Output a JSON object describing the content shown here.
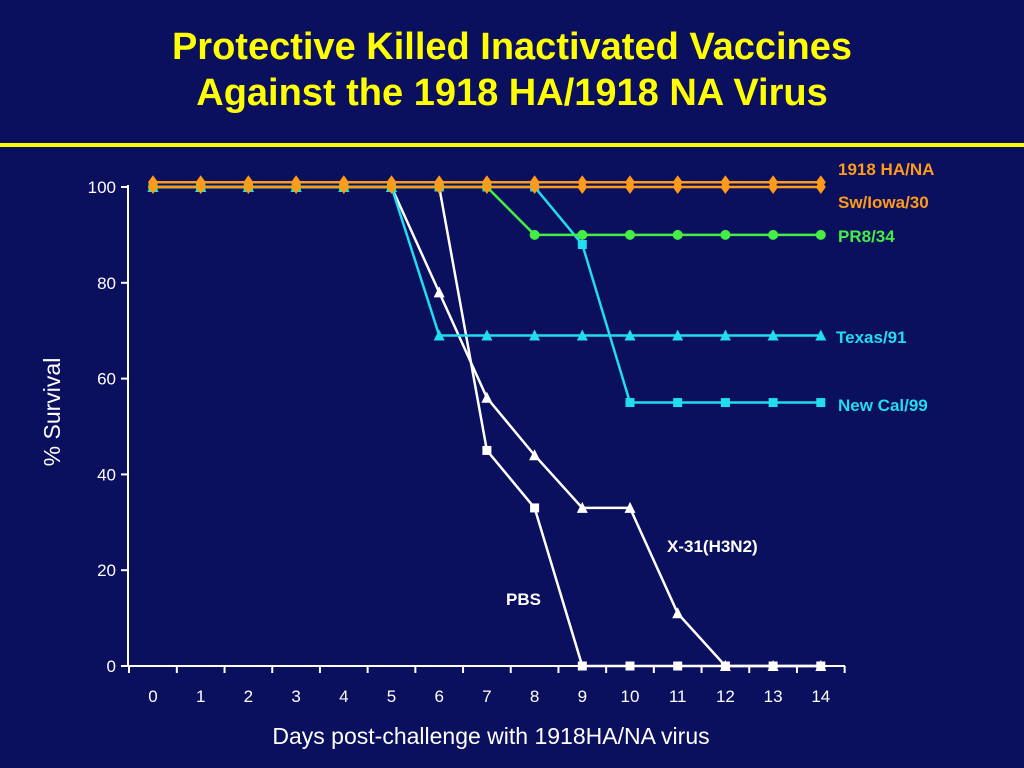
{
  "slide": {
    "title_line1": "Protective Killed Inactivated Vaccines",
    "title_line2": "Against the 1918 HA/1918 NA Virus"
  },
  "colors": {
    "background": "#0a0f5e",
    "title": "#ffff00",
    "axes": "#ffffff"
  },
  "chart_data": {
    "type": "line",
    "title": "",
    "xlabel": "Days post-challenge with 1918HA/NA virus",
    "ylabel": "% Survival",
    "xlim": [
      0,
      14
    ],
    "ylim": [
      0,
      100
    ],
    "x_ticks": [
      "0",
      "1",
      "2",
      "3",
      "4",
      "5",
      "6",
      "7",
      "8",
      "9",
      "10",
      "11",
      "12",
      "13",
      "14"
    ],
    "y_ticks": [
      "0",
      "20",
      "40",
      "60",
      "80",
      "100"
    ],
    "grid": false,
    "legend": "direct labels",
    "x": [
      0,
      1,
      2,
      3,
      4,
      5,
      6,
      7,
      8,
      9,
      10,
      11,
      12,
      13,
      14
    ],
    "series": [
      {
        "name": "1918 HA/NA",
        "color": "#ff9a1a",
        "marker": "diamond",
        "values": [
          101,
          101,
          101,
          101,
          101,
          101,
          101,
          101,
          101,
          101,
          101,
          101,
          101,
          101,
          101
        ]
      },
      {
        "name": "Sw/Iowa/30",
        "color": "#ff9a1a",
        "marker": "diamond",
        "values": [
          100,
          100,
          100,
          100,
          100,
          100,
          100,
          100,
          100,
          100,
          100,
          100,
          100,
          100,
          100
        ]
      },
      {
        "name": "PR8/34",
        "color": "#44ee44",
        "marker": "circle",
        "values": [
          100,
          100,
          100,
          100,
          100,
          100,
          100,
          100,
          90,
          90,
          90,
          90,
          90,
          90,
          90
        ]
      },
      {
        "name": "Texas/91",
        "color": "#22dcf0",
        "marker": "triangle",
        "values": [
          100,
          100,
          100,
          100,
          100,
          100,
          69,
          69,
          69,
          69,
          69,
          69,
          69,
          69,
          69
        ]
      },
      {
        "name": "New Cal/99",
        "color": "#22dcf0",
        "marker": "square",
        "values": [
          100,
          100,
          100,
          100,
          100,
          100,
          100,
          100,
          100,
          88,
          55,
          55,
          55,
          55,
          55
        ]
      },
      {
        "name": "X-31(H3N2)",
        "color": "#ffffff",
        "marker": "triangle",
        "values": [
          100,
          100,
          100,
          100,
          100,
          100,
          78,
          56,
          44,
          33,
          33,
          11,
          0,
          0,
          0
        ]
      },
      {
        "name": "PBS",
        "color": "#ffffff",
        "marker": "square",
        "values": [
          100,
          100,
          100,
          100,
          100,
          100,
          100,
          45,
          33,
          0,
          0,
          0,
          0,
          0,
          0
        ]
      }
    ]
  }
}
